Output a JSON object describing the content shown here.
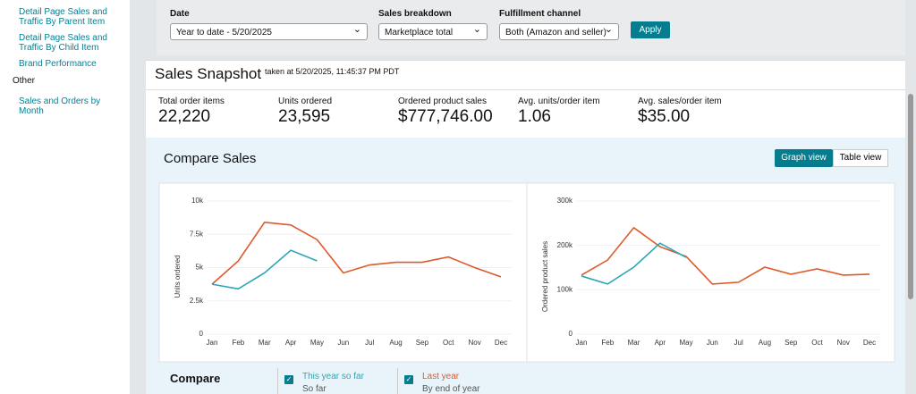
{
  "sidebar": {
    "links": [
      "Detail Page Sales and Traffic By Parent Item",
      "Detail Page Sales and Traffic By Child Item",
      "Brand Performance"
    ],
    "section": "Other",
    "section_links": [
      "Sales and Orders by Month"
    ]
  },
  "filters": [
    {
      "label": "Date",
      "value": "Year to date - 5/20/2025"
    },
    {
      "label": "Sales breakdown",
      "value": "Marketplace total"
    },
    {
      "label": "Fulfillment channel",
      "value": "Both (Amazon and seller)"
    }
  ],
  "apply": "Apply",
  "snapshot": {
    "title": "Sales Snapshot",
    "taken": "taken at 5/20/2025, 11:45:37 PM PDT",
    "metrics": [
      {
        "label": "Total order items",
        "value": "22,220"
      },
      {
        "label": "Units ordered",
        "value": "23,595"
      },
      {
        "label": "Ordered product sales",
        "value": "$777,746.00"
      },
      {
        "label": "Avg. units/order item",
        "value": "1.06"
      },
      {
        "label": "Avg. sales/order item",
        "value": "$35.00"
      }
    ]
  },
  "compare": {
    "title": "Compare Sales",
    "views": [
      "Graph view",
      "Table view"
    ],
    "legend_title": "Compare",
    "notes": [
      "So far",
      "By end of year"
    ]
  },
  "chart_data": [
    {
      "type": "line",
      "y_label": "Units ordered",
      "categories": [
        "Jan",
        "Feb",
        "Mar",
        "Apr",
        "May",
        "Jun",
        "Jul",
        "Aug",
        "Sep",
        "Oct",
        "Nov",
        "Dec"
      ],
      "series": [
        {
          "name": "This year so far",
          "color": "#2aa6b5",
          "values": [
            3750,
            3400,
            4600,
            6300,
            5500,
            null,
            null,
            null,
            null,
            null,
            null,
            null
          ]
        },
        {
          "name": "Last year",
          "color": "#dd5a2b",
          "values": [
            3750,
            5500,
            8400,
            8200,
            7100,
            4600,
            5200,
            5400,
            5400,
            5800,
            5000,
            4300
          ]
        }
      ],
      "ylim": [
        0,
        10000
      ],
      "yticks": [
        0,
        {
          "value": 2500,
          "label": "2.5k"
        },
        {
          "value": 5000,
          "label": "5k"
        },
        {
          "value": 7500,
          "label": "7.5k"
        },
        {
          "value": 10000,
          "label": "10k"
        }
      ],
      "grid": true
    },
    {
      "type": "line",
      "y_label": "Ordered product sales",
      "categories": [
        "Jan",
        "Feb",
        "Mar",
        "Apr",
        "May",
        "Jun",
        "Jul",
        "Aug",
        "Sep",
        "Oct",
        "Nov",
        "Dec"
      ],
      "series": [
        {
          "color": "#2aa6b5",
          "values": [
            131000,
            113000,
            151000,
            205000,
            173000,
            null,
            null,
            null,
            null,
            null,
            null,
            null
          ]
        },
        {
          "color": "#dd5a2b",
          "values": [
            133000,
            167000,
            240000,
            197000,
            175000,
            113000,
            117000,
            151000,
            135000,
            147000,
            133000,
            135000
          ]
        }
      ],
      "ylim": [
        0,
        300000
      ],
      "yticks": [
        0,
        {
          "value": 100000,
          "label": "100k"
        },
        {
          "value": 200000,
          "label": "200k"
        },
        {
          "value": 300000,
          "label": "300k"
        }
      ],
      "grid": true
    }
  ]
}
